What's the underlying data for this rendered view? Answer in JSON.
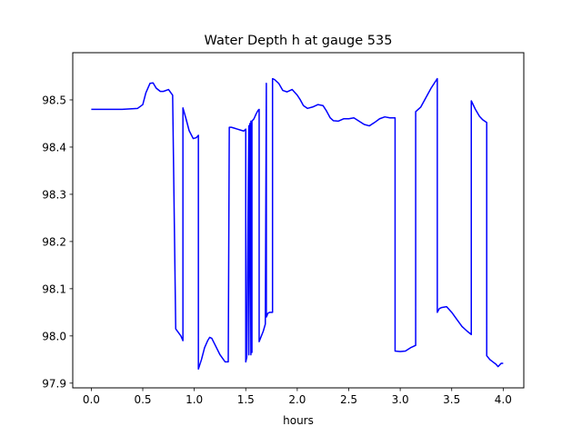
{
  "chart_data": {
    "type": "line",
    "title": "Water Depth h at gauge 535",
    "xlabel": "hours",
    "ylabel": "",
    "xlim": [
      -0.18,
      4.2
    ],
    "ylim": [
      97.89,
      98.6
    ],
    "xticks": [
      0.0,
      0.5,
      1.0,
      1.5,
      2.0,
      2.5,
      3.0,
      3.5,
      4.0
    ],
    "xtick_labels": [
      "0.0",
      "0.5",
      "1.0",
      "1.5",
      "2.0",
      "2.5",
      "3.0",
      "3.5",
      "4.0"
    ],
    "yticks": [
      97.9,
      98.0,
      98.1,
      98.2,
      98.3,
      98.4,
      98.5
    ],
    "ytick_labels": [
      "97.9",
      "98.0",
      "98.1",
      "98.2",
      "98.3",
      "98.4",
      "98.5"
    ],
    "grid": false,
    "series": [
      {
        "color": "#0000ff",
        "x": [
          0.0,
          0.15,
          0.3,
          0.45,
          0.5,
          0.53,
          0.57,
          0.6,
          0.63,
          0.67,
          0.7,
          0.75,
          0.79,
          0.82,
          0.82,
          0.87,
          0.89,
          0.89,
          0.92,
          0.95,
          0.99,
          1.02,
          1.04,
          1.04,
          1.07,
          1.1,
          1.13,
          1.15,
          1.17,
          1.2,
          1.25,
          1.3,
          1.33,
          1.34,
          1.34,
          1.36,
          1.39,
          1.42,
          1.45,
          1.48,
          1.5,
          1.5,
          1.51,
          1.53,
          1.53,
          1.54,
          1.55,
          1.55,
          1.56,
          1.56,
          1.58,
          1.6,
          1.62,
          1.63,
          1.63,
          1.67,
          1.69,
          1.7,
          1.7,
          1.71,
          1.71,
          1.73,
          1.76,
          1.76,
          1.78,
          1.82,
          1.86,
          1.9,
          1.95,
          2.0,
          2.03,
          2.06,
          2.1,
          2.15,
          2.2,
          2.25,
          2.28,
          2.32,
          2.35,
          2.4,
          2.45,
          2.5,
          2.55,
          2.6,
          2.65,
          2.7,
          2.75,
          2.8,
          2.85,
          2.9,
          2.95,
          2.95,
          3.0,
          3.05,
          3.1,
          3.15,
          3.15,
          3.2,
          3.25,
          3.3,
          3.36,
          3.36,
          3.38,
          3.4,
          3.45,
          3.5,
          3.55,
          3.6,
          3.65,
          3.69,
          3.69,
          3.73,
          3.77,
          3.8,
          3.84,
          3.84,
          3.87,
          3.9,
          3.93,
          3.95,
          3.98,
          4.0
        ],
        "y": [
          98.48,
          98.48,
          98.48,
          98.482,
          98.49,
          98.515,
          98.535,
          98.536,
          98.525,
          98.518,
          98.518,
          98.522,
          98.51,
          98.015,
          98.015,
          98.0,
          97.99,
          98.483,
          98.46,
          98.435,
          98.418,
          98.42,
          98.425,
          97.93,
          97.95,
          97.975,
          97.99,
          97.997,
          97.995,
          97.982,
          97.96,
          97.945,
          97.945,
          98.44,
          98.442,
          98.442,
          98.44,
          98.438,
          98.436,
          98.434,
          98.438,
          97.945,
          97.955,
          98.445,
          97.96,
          98.45,
          97.96,
          98.455,
          97.965,
          98.455,
          98.46,
          98.47,
          98.478,
          98.48,
          97.988,
          98.01,
          98.025,
          98.535,
          98.04,
          98.045,
          98.047,
          98.05,
          98.05,
          98.545,
          98.543,
          98.535,
          98.52,
          98.517,
          98.522,
          98.51,
          98.5,
          98.488,
          98.482,
          98.485,
          98.49,
          98.488,
          98.478,
          98.462,
          98.456,
          98.455,
          98.46,
          98.46,
          98.462,
          98.455,
          98.448,
          98.445,
          98.452,
          98.46,
          98.464,
          98.462,
          98.462,
          97.968,
          97.967,
          97.968,
          97.975,
          97.98,
          98.475,
          98.485,
          98.505,
          98.525,
          98.545,
          98.05,
          98.058,
          98.06,
          98.062,
          98.05,
          98.035,
          98.02,
          98.01,
          98.003,
          98.498,
          98.48,
          98.465,
          98.458,
          98.452,
          97.958,
          97.95,
          97.945,
          97.94,
          97.935,
          97.942,
          97.942
        ]
      }
    ]
  }
}
